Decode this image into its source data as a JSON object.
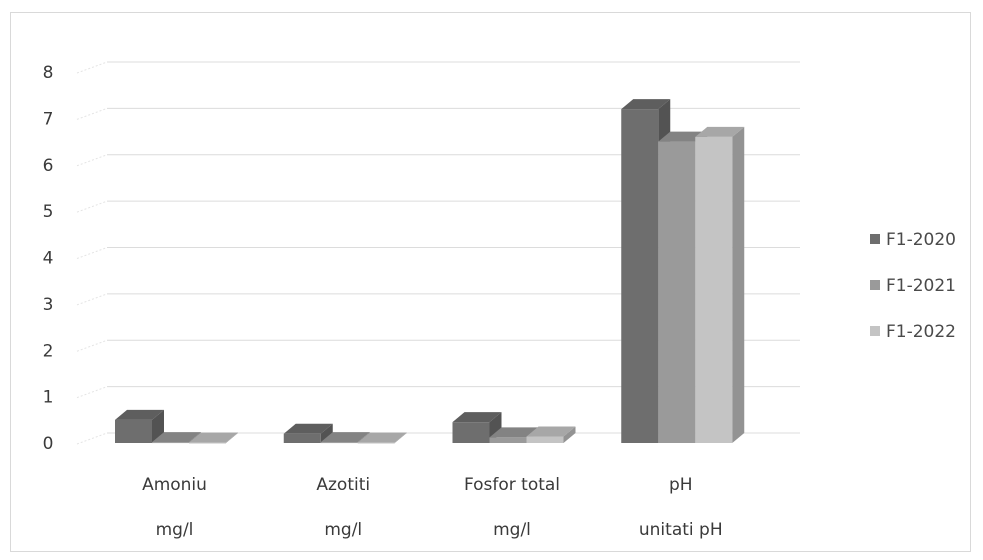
{
  "chart_data": {
    "type": "bar",
    "categories": [
      "Amoniu",
      "Azotiti",
      "Fosfor total",
      "pH"
    ],
    "category_units": [
      "mg/l",
      "mg/l",
      "mg/l",
      "unitati pH"
    ],
    "series": [
      {
        "name": "F1-2020",
        "values": [
          0.5,
          0.2,
          0.45,
          7.2
        ]
      },
      {
        "name": "F1-2021",
        "values": [
          0.02,
          0.02,
          0.12,
          6.5
        ]
      },
      {
        "name": "F1-2022",
        "values": [
          0.01,
          0.01,
          0.14,
          6.6
        ]
      }
    ],
    "colors": [
      "#6e6e6e",
      "#9a9a9a",
      "#c4c4c4"
    ],
    "y_ticks": [
      "0",
      "1",
      "2",
      "3",
      "4",
      "5",
      "6",
      "7",
      "8"
    ],
    "ylim": [
      0,
      8
    ],
    "grid": true,
    "legend_position": "right",
    "style": "3d-clustered-column"
  }
}
